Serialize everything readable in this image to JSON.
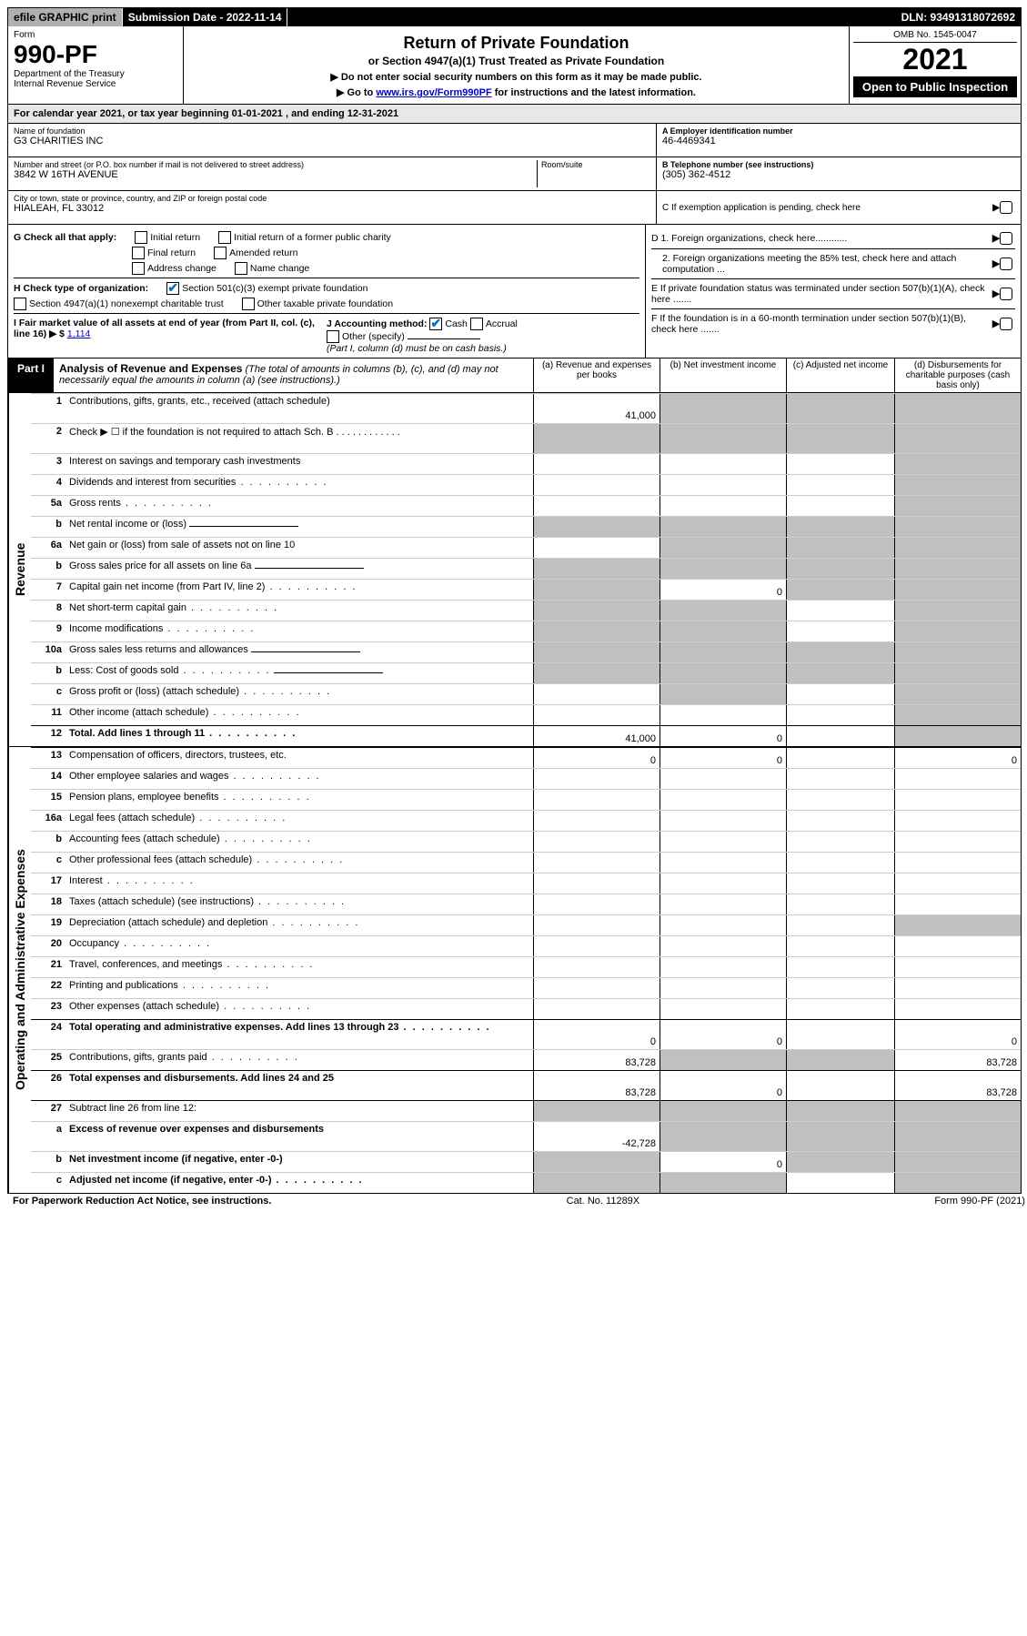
{
  "topbar": {
    "efile": "efile GRAPHIC print",
    "submission": "Submission Date - 2022-11-14",
    "dln": "DLN: 93491318072692"
  },
  "header": {
    "form_label": "Form",
    "form_number": "990-PF",
    "dept": "Department of the Treasury",
    "irs": "Internal Revenue Service",
    "title": "Return of Private Foundation",
    "subtitle": "or Section 4947(a)(1) Trust Treated as Private Foundation",
    "instr1": "▶ Do not enter social security numbers on this form as it may be made public.",
    "instr2_pre": "▶ Go to ",
    "instr2_link": "www.irs.gov/Form990PF",
    "instr2_post": " for instructions and the latest information.",
    "omb": "OMB No. 1545-0047",
    "year": "2021",
    "open": "Open to Public Inspection"
  },
  "calyear": "For calendar year 2021, or tax year beginning 01-01-2021          , and ending 12-31-2021",
  "info": {
    "name_label": "Name of foundation",
    "name": "G3 CHARITIES INC",
    "addr_label": "Number and street (or P.O. box number if mail is not delivered to street address)",
    "room_label": "Room/suite",
    "addr": "3842 W 16TH AVENUE",
    "city_label": "City or town, state or province, country, and ZIP or foreign postal code",
    "city": "HIALEAH, FL  33012",
    "a_label": "A Employer identification number",
    "a_val": "46-4469341",
    "b_label": "B Telephone number (see instructions)",
    "b_val": "(305) 362-4512",
    "c_label": "C If exemption application is pending, check here"
  },
  "checks": {
    "g": "G Check all that apply:",
    "g_opts": [
      "Initial return",
      "Initial return of a former public charity",
      "Final return",
      "Amended return",
      "Address change",
      "Name change"
    ],
    "h": "H Check type of organization:",
    "h1": "Section 501(c)(3) exempt private foundation",
    "h2": "Section 4947(a)(1) nonexempt charitable trust",
    "h3": "Other taxable private foundation",
    "i": "I Fair market value of all assets at end of year (from Part II, col. (c), line 16)",
    "i_val": "1,114",
    "j": "J Accounting method:",
    "j_cash": "Cash",
    "j_accrual": "Accrual",
    "j_other": "Other (specify)",
    "j_note": "(Part I, column (d) must be on cash basis.)",
    "d1": "D 1. Foreign organizations, check here............",
    "d2": "2. Foreign organizations meeting the 85% test, check here and attach computation ...",
    "e": "E  If private foundation status was terminated under section 507(b)(1)(A), check here .......",
    "f": "F  If the foundation is in a 60-month termination under section 507(b)(1)(B), check here ......."
  },
  "part1": {
    "tag": "Part I",
    "title": "Analysis of Revenue and Expenses",
    "note": "(The total of amounts in columns (b), (c), and (d) may not necessarily equal the amounts in column (a) (see instructions).)",
    "col_a": "(a)  Revenue and expenses per books",
    "col_b": "(b)  Net investment income",
    "col_c": "(c)  Adjusted net income",
    "col_d": "(d)  Disbursements for charitable purposes (cash basis only)"
  },
  "sections": {
    "revenue": "Revenue",
    "expenses": "Operating and Administrative Expenses"
  },
  "rows": [
    {
      "n": "1",
      "desc": "Contributions, gifts, grants, etc., received (attach schedule)",
      "a": "41,000",
      "b": "",
      "c": "",
      "d": "",
      "shaded": [
        "b",
        "c",
        "d"
      ],
      "tall": true
    },
    {
      "n": "2",
      "desc": "Check ▶ ☐ if the foundation is not required to attach Sch. B",
      "nocells": true,
      "tall": true,
      "dotsAfter": true
    },
    {
      "n": "3",
      "desc": "Interest on savings and temporary cash investments",
      "a": "",
      "b": "",
      "c": "",
      "d": "",
      "shaded": [
        "d"
      ]
    },
    {
      "n": "4",
      "desc": "Dividends and interest from securities",
      "a": "",
      "b": "",
      "c": "",
      "d": "",
      "shaded": [
        "d"
      ],
      "dots": true
    },
    {
      "n": "5a",
      "desc": "Gross rents",
      "a": "",
      "b": "",
      "c": "",
      "d": "",
      "shaded": [
        "d"
      ],
      "dots": true
    },
    {
      "n": "b",
      "desc": "Net rental income or (loss)",
      "halfline": true,
      "a": "",
      "b": "",
      "c": "",
      "d": "",
      "shaded": [
        "a",
        "b",
        "c",
        "d"
      ]
    },
    {
      "n": "6a",
      "desc": "Net gain or (loss) from sale of assets not on line 10",
      "a": "",
      "b": "",
      "c": "",
      "d": "",
      "shaded": [
        "b",
        "c",
        "d"
      ]
    },
    {
      "n": "b",
      "desc": "Gross sales price for all assets on line 6a",
      "halfline": true,
      "a": "",
      "b": "",
      "c": "",
      "d": "",
      "shaded": [
        "a",
        "b",
        "c",
        "d"
      ]
    },
    {
      "n": "7",
      "desc": "Capital gain net income (from Part IV, line 2)",
      "a": "",
      "b": "0",
      "c": "",
      "d": "",
      "shaded": [
        "a",
        "c",
        "d"
      ],
      "dots": true
    },
    {
      "n": "8",
      "desc": "Net short-term capital gain",
      "a": "",
      "b": "",
      "c": "",
      "d": "",
      "shaded": [
        "a",
        "b",
        "d"
      ],
      "dots": true
    },
    {
      "n": "9",
      "desc": "Income modifications",
      "a": "",
      "b": "",
      "c": "",
      "d": "",
      "shaded": [
        "a",
        "b",
        "d"
      ],
      "dots": true
    },
    {
      "n": "10a",
      "desc": "Gross sales less returns and allowances",
      "halfline": true,
      "a": "",
      "b": "",
      "c": "",
      "d": "",
      "shaded": [
        "a",
        "b",
        "c",
        "d"
      ]
    },
    {
      "n": "b",
      "desc": "Less: Cost of goods sold",
      "halfline": true,
      "a": "",
      "b": "",
      "c": "",
      "d": "",
      "shaded": [
        "a",
        "b",
        "c",
        "d"
      ],
      "dots": true
    },
    {
      "n": "c",
      "desc": "Gross profit or (loss) (attach schedule)",
      "a": "",
      "b": "",
      "c": "",
      "d": "",
      "shaded": [
        "b",
        "d"
      ],
      "dots": true
    },
    {
      "n": "11",
      "desc": "Other income (attach schedule)",
      "a": "",
      "b": "",
      "c": "",
      "d": "",
      "shaded": [
        "d"
      ],
      "dots": true
    },
    {
      "n": "12",
      "desc": "Total. Add lines 1 through 11",
      "bold": true,
      "a": "41,000",
      "b": "0",
      "c": "",
      "d": "",
      "shaded": [
        "d"
      ],
      "dots": true,
      "topborder": true
    },
    {
      "n": "13",
      "desc": "Compensation of officers, directors, trustees, etc.",
      "a": "0",
      "b": "0",
      "c": "",
      "d": "0",
      "section": "exp",
      "topborder": true
    },
    {
      "n": "14",
      "desc": "Other employee salaries and wages",
      "a": "",
      "b": "",
      "c": "",
      "d": "",
      "dots": true
    },
    {
      "n": "15",
      "desc": "Pension plans, employee benefits",
      "a": "",
      "b": "",
      "c": "",
      "d": "",
      "dots": true
    },
    {
      "n": "16a",
      "desc": "Legal fees (attach schedule)",
      "a": "",
      "b": "",
      "c": "",
      "d": "",
      "dots": true
    },
    {
      "n": "b",
      "desc": "Accounting fees (attach schedule)",
      "a": "",
      "b": "",
      "c": "",
      "d": "",
      "dots": true
    },
    {
      "n": "c",
      "desc": "Other professional fees (attach schedule)",
      "a": "",
      "b": "",
      "c": "",
      "d": "",
      "dots": true
    },
    {
      "n": "17",
      "desc": "Interest",
      "a": "",
      "b": "",
      "c": "",
      "d": "",
      "dots": true
    },
    {
      "n": "18",
      "desc": "Taxes (attach schedule) (see instructions)",
      "a": "",
      "b": "",
      "c": "",
      "d": "",
      "dots": true
    },
    {
      "n": "19",
      "desc": "Depreciation (attach schedule) and depletion",
      "a": "",
      "b": "",
      "c": "",
      "d": "",
      "shaded": [
        "d"
      ],
      "dots": true
    },
    {
      "n": "20",
      "desc": "Occupancy",
      "a": "",
      "b": "",
      "c": "",
      "d": "",
      "dots": true
    },
    {
      "n": "21",
      "desc": "Travel, conferences, and meetings",
      "a": "",
      "b": "",
      "c": "",
      "d": "",
      "dots": true
    },
    {
      "n": "22",
      "desc": "Printing and publications",
      "a": "",
      "b": "",
      "c": "",
      "d": "",
      "dots": true
    },
    {
      "n": "23",
      "desc": "Other expenses (attach schedule)",
      "a": "",
      "b": "",
      "c": "",
      "d": "",
      "dots": true
    },
    {
      "n": "24",
      "desc": "Total operating and administrative expenses. Add lines 13 through 23",
      "bold": true,
      "a": "0",
      "b": "0",
      "c": "",
      "d": "0",
      "tall": true,
      "dots": true,
      "topborder": true
    },
    {
      "n": "25",
      "desc": "Contributions, gifts, grants paid",
      "a": "83,728",
      "b": "",
      "c": "",
      "d": "83,728",
      "shaded": [
        "b",
        "c"
      ],
      "dots": true
    },
    {
      "n": "26",
      "desc": "Total expenses and disbursements. Add lines 24 and 25",
      "bold": true,
      "a": "83,728",
      "b": "0",
      "c": "",
      "d": "83,728",
      "tall": true,
      "topborder": true
    },
    {
      "n": "27",
      "desc": "Subtract line 26 from line 12:",
      "a": "",
      "b": "",
      "c": "",
      "d": "",
      "shaded": [
        "a",
        "b",
        "c",
        "d"
      ],
      "topborder": true
    },
    {
      "n": "a",
      "desc": "Excess of revenue over expenses and disbursements",
      "bold": true,
      "a": "-42,728",
      "b": "",
      "c": "",
      "d": "",
      "shaded": [
        "b",
        "c",
        "d"
      ],
      "tall": true
    },
    {
      "n": "b",
      "desc": "Net investment income (if negative, enter -0-)",
      "bold": true,
      "a": "",
      "b": "0",
      "c": "",
      "d": "",
      "shaded": [
        "a",
        "c",
        "d"
      ]
    },
    {
      "n": "c",
      "desc": "Adjusted net income (if negative, enter -0-)",
      "bold": true,
      "a": "",
      "b": "",
      "c": "",
      "d": "",
      "shaded": [
        "a",
        "b",
        "d"
      ],
      "dots": true
    }
  ],
  "footer": {
    "left": "For Paperwork Reduction Act Notice, see instructions.",
    "center": "Cat. No. 11289X",
    "right": "Form 990-PF (2021)"
  }
}
